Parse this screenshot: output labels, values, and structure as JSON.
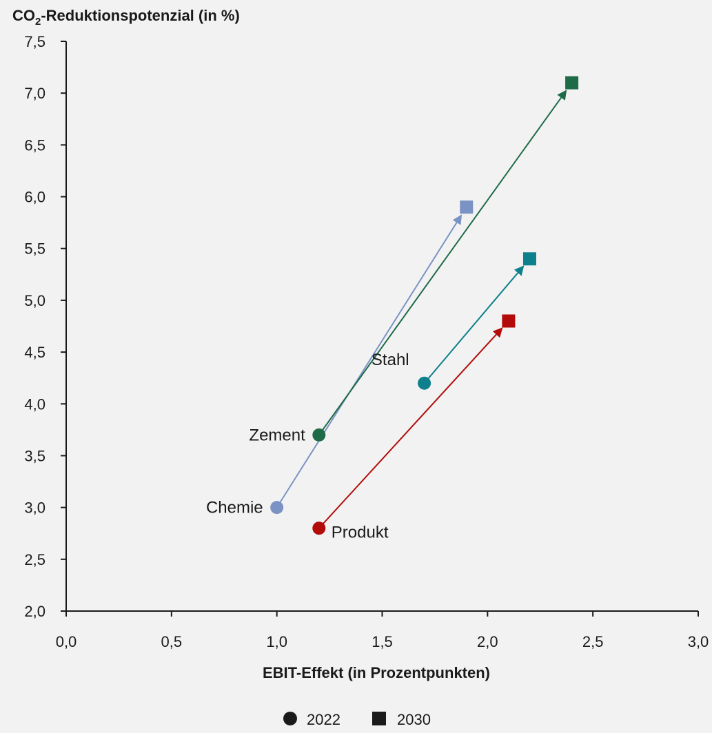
{
  "chart_data": {
    "type": "scatter",
    "ylabel_main": "CO",
    "ylabel_sub": "2",
    "ylabel_rest": "-Reduktionspotenzial (in %)",
    "xlabel": "EBIT-Effekt (in Prozentpunkten)",
    "xlim": [
      0,
      3
    ],
    "ylim": [
      2,
      7.5
    ],
    "x_ticks": [
      "0,0",
      "0,5",
      "1,0",
      "1,5",
      "2,0",
      "2,5",
      "3,0"
    ],
    "x_tick_values": [
      0,
      0.5,
      1.0,
      1.5,
      2.0,
      2.5,
      3.0
    ],
    "y_ticks": [
      "2,0",
      "2,5",
      "3,0",
      "3,5",
      "4,0",
      "4,5",
      "5,0",
      "5,5",
      "6,0",
      "6,5",
      "7,0",
      "7,5"
    ],
    "y_tick_values": [
      2.0,
      2.5,
      3.0,
      3.5,
      4.0,
      4.5,
      5.0,
      5.5,
      6.0,
      6.5,
      7.0,
      7.5
    ],
    "grid": false,
    "legend": {
      "placement": "bottom-center",
      "entries": [
        {
          "label": "2022",
          "marker": "circle"
        },
        {
          "label": "2030",
          "marker": "square"
        }
      ]
    },
    "series": [
      {
        "name": "Chemie",
        "color": "#7b93c4",
        "label_side": "left",
        "start": {
          "x": 1.0,
          "y": 3.0
        },
        "end": {
          "x": 1.9,
          "y": 5.9
        }
      },
      {
        "name": "Zement",
        "color": "#1e6b48",
        "label_side": "left",
        "start": {
          "x": 1.2,
          "y": 3.7
        },
        "end": {
          "x": 2.4,
          "y": 7.1
        }
      },
      {
        "name": "Stahl",
        "color": "#0e7f8c",
        "label_side": "above-left",
        "start": {
          "x": 1.7,
          "y": 4.2
        },
        "end": {
          "x": 2.2,
          "y": 5.4
        }
      },
      {
        "name": "Produkt",
        "color": "#b30a0a",
        "label_side": "right-below",
        "start": {
          "x": 1.2,
          "y": 2.8
        },
        "end": {
          "x": 2.1,
          "y": 4.8
        }
      }
    ]
  }
}
